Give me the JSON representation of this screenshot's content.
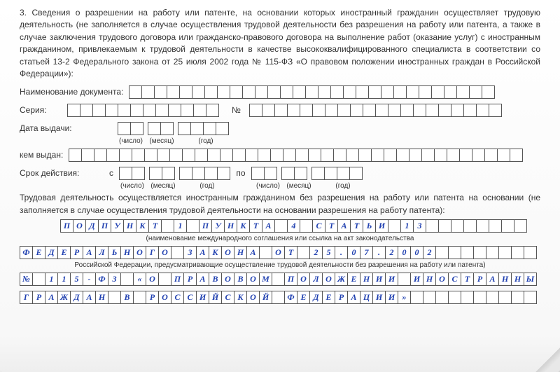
{
  "section_number": "3.",
  "intro_paragraph": "3. Сведения о разрешении на работу или патенте, на основании которых иностранный гражданин осуществляет трудовую деятельность (не заполняется в случае осуществления трудовой деятельности без разрешения на работу или патента, а также в случае заключения трудового договора или гражданско-правового договора на выполнение работ (оказание услуг) с иностранным гражданином, привлекаемым к трудовой деятельности в качестве высоко­квалифицированного специалиста в соответствии со статьей 13-2 Федерального закона от 25 июля 2002 года № 115-ФЗ «О правовом положении иностранных граждан в Российской Федерации»):",
  "labels": {
    "doc_name": "Наименование документа:",
    "series": "Серия:",
    "number_sym": "№",
    "issue_date": "Дата выдачи:",
    "issued_by": "кем выдан:",
    "validity": "Срок действия:",
    "from": "с",
    "to": "по",
    "day": "(число)",
    "month": "(месяц)",
    "year": "(год)"
  },
  "fields": {
    "doc_name_cells": 29,
    "series_cells": 12,
    "number_cells": 20,
    "issued_by_cells": 36
  },
  "activity_para": "Трудовая деятельность осуществляется иностранным гражданином без разрешения на работу или патента на основании  (не заполняется  в случае осуществления  трудовой  деятельности на основании разрешения на работу патента):",
  "filled_lines": [
    "ПОДПУНКТ 1 ПУНКТА 4 СТАТЬИ 13       ",
    "ФЕДЕРАЛЬНОГО ЗАКОНА ОТ 25.07.2002       ",
    "№ 115-ФЗ «О ПРАВОВОМ ПОЛОЖЕНИИ ИНОСТРАННЫХ",
    "ГРАЖДАН В РОССИЙСКОЙ ФЕДЕРАЦИИ»          "
  ],
  "note1": "(наименование международного соглашения или ссылка на акт законодательства",
  "note2": "Российской Федерации, предусматривающие осуществление трудовой деятельности без разрешения на работу или патента)",
  "colors": {
    "text": "#333333",
    "filled_text": "#2040b0",
    "cell_border": "#555555",
    "background": "#ffffff"
  }
}
